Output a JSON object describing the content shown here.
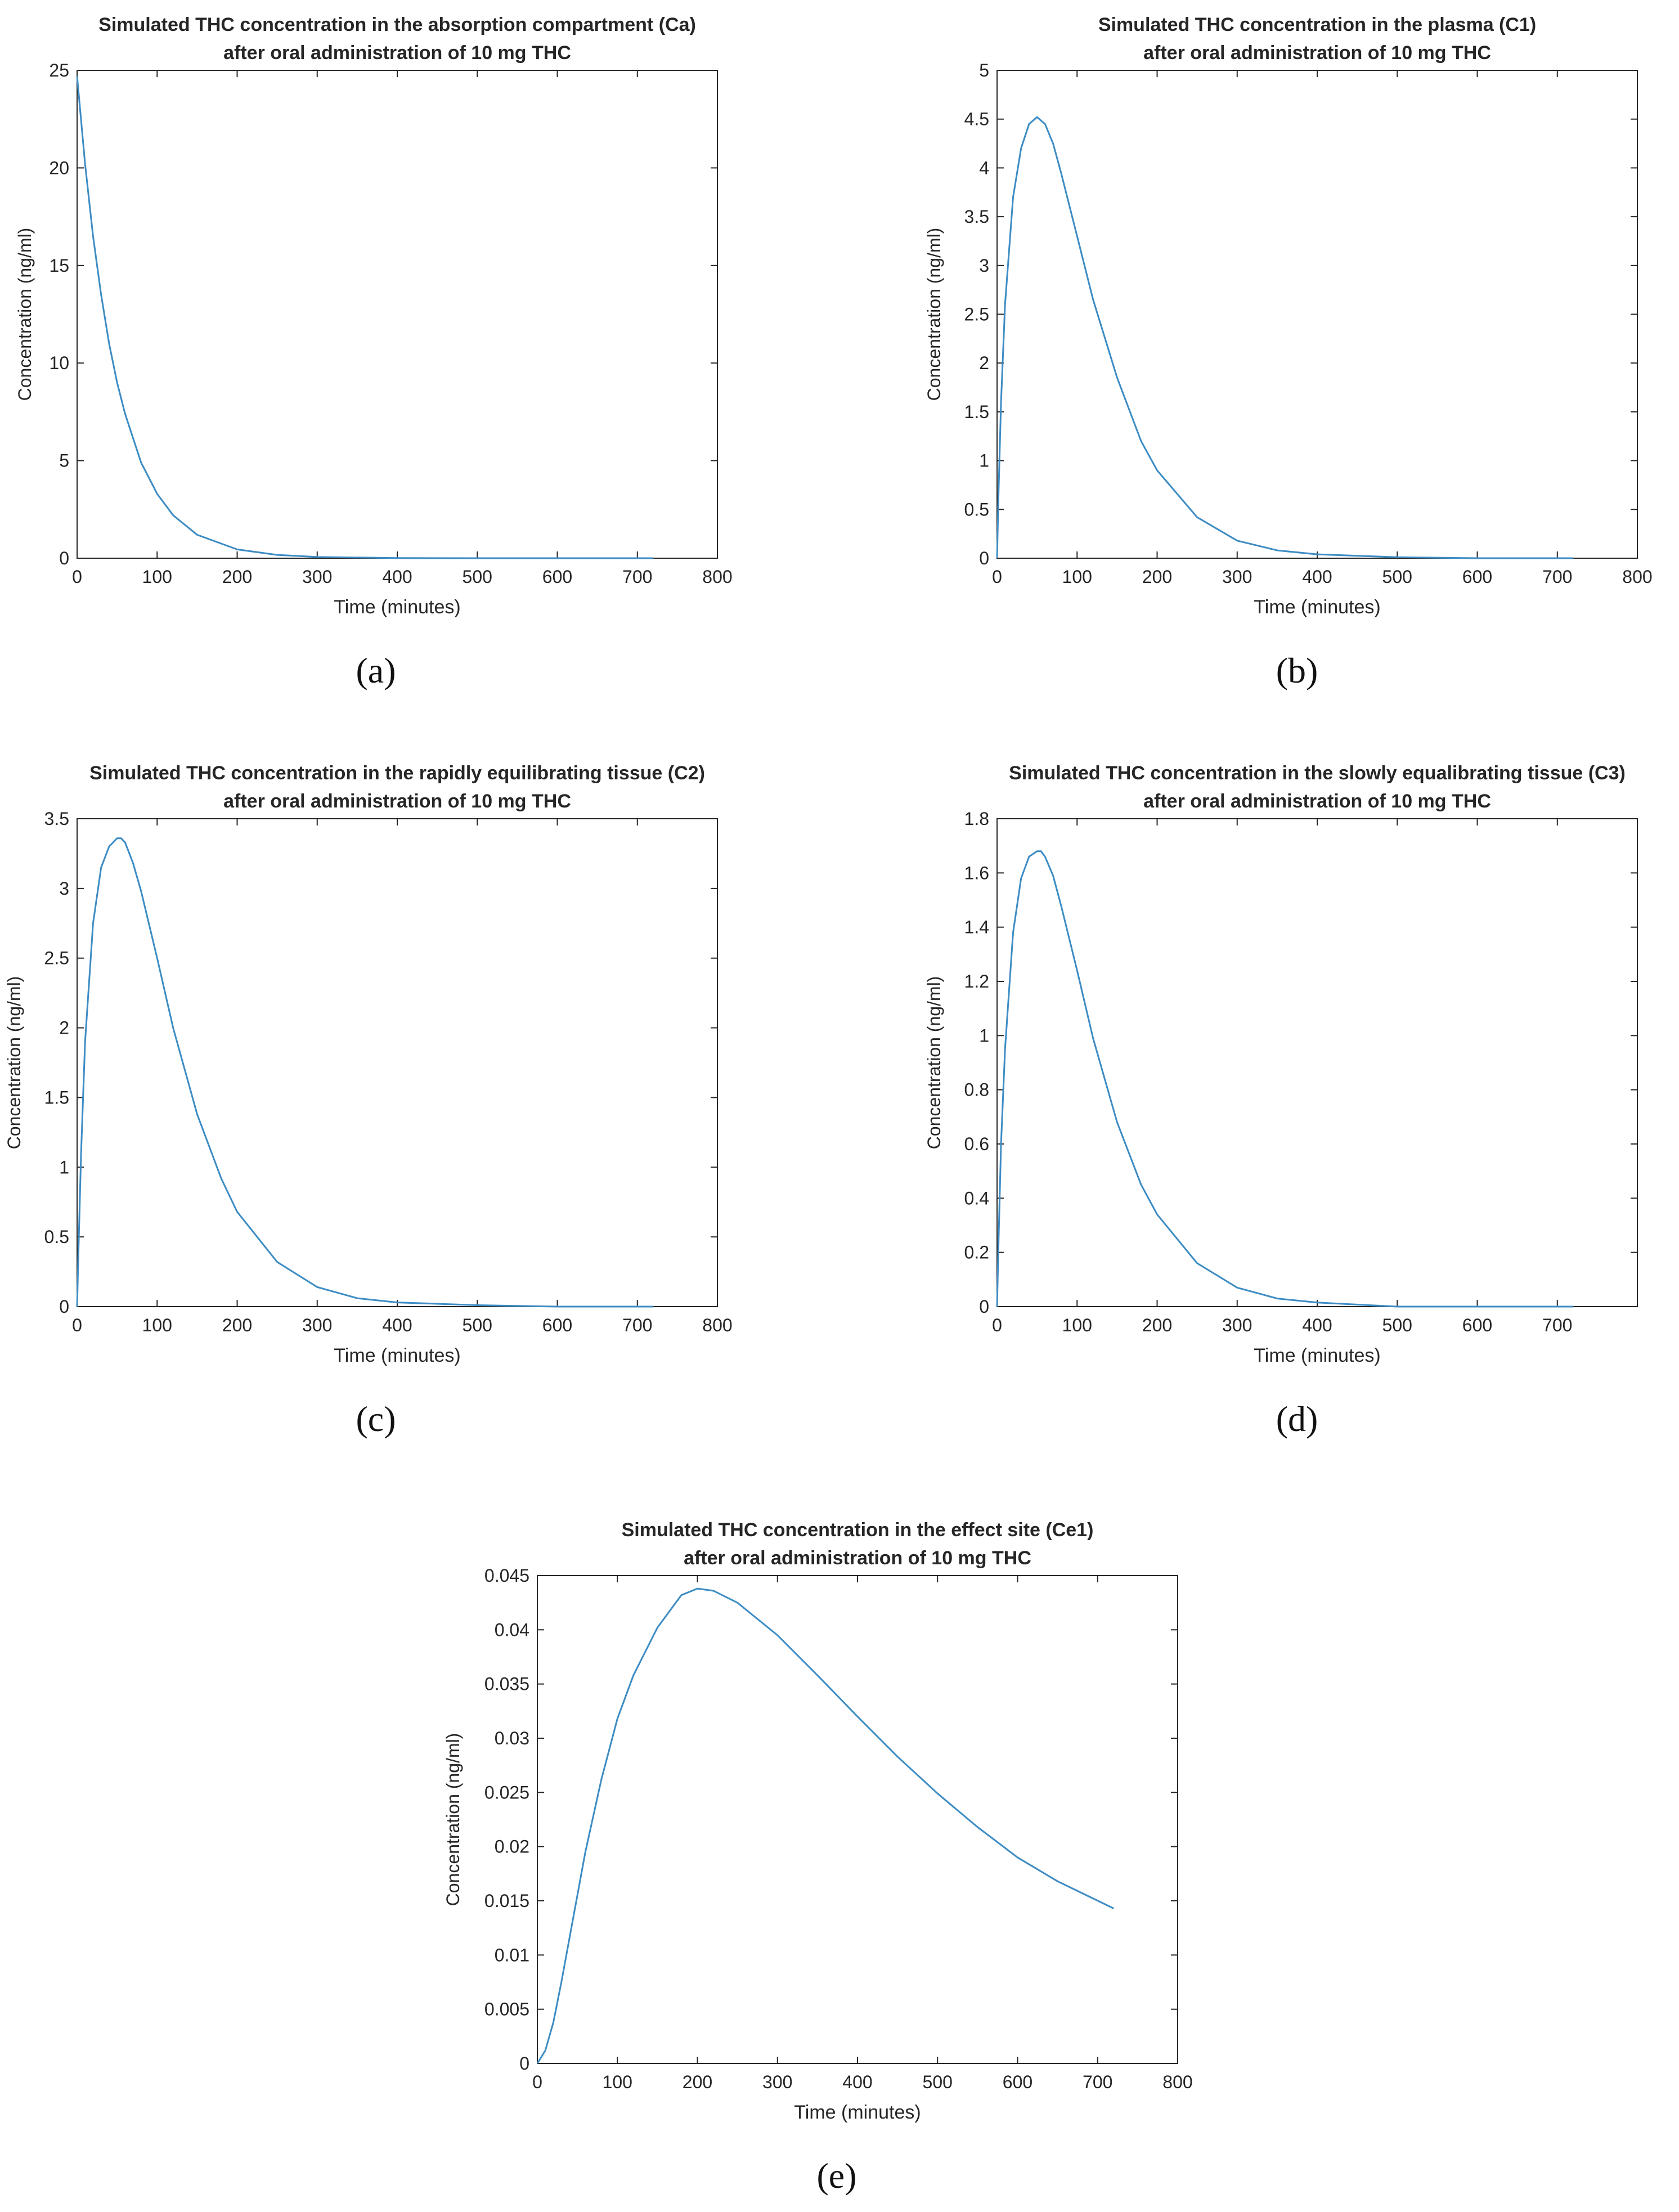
{
  "figure": {
    "colors": {
      "line": "#3d8cc4",
      "axis": "#262626",
      "text": "#262626",
      "background": "#ffffff"
    }
  },
  "chart_data": [
    {
      "id": "a",
      "caption": "(a)",
      "type": "line",
      "title": [
        "Simulated THC concentration in the absorption compartment (Ca)",
        "after oral administration of 10 mg THC"
      ],
      "xlabel": "Time (minutes)",
      "ylabel": "Concentration (ng/ml)",
      "xlim": [
        0,
        800
      ],
      "ylim": [
        0,
        25
      ],
      "xticks": [
        0,
        100,
        200,
        300,
        400,
        500,
        600,
        700,
        800
      ],
      "xtick_labels": [
        "0",
        "100",
        "200",
        "300",
        "400",
        "500",
        "600",
        "700",
        "800"
      ],
      "yticks": [
        0,
        5,
        10,
        15,
        20,
        25
      ],
      "ytick_labels": [
        "0",
        "5",
        "10",
        "15",
        "20",
        "25"
      ],
      "series": [
        {
          "name": "Ca",
          "x": [
            0,
            10,
            20,
            30,
            40,
            50,
            60,
            80,
            100,
            120,
            150,
            200,
            250,
            300,
            400,
            500,
            600,
            720
          ],
          "y": [
            24.7,
            20.2,
            16.5,
            13.5,
            11.0,
            9.0,
            7.4,
            4.9,
            3.3,
            2.2,
            1.2,
            0.45,
            0.17,
            0.06,
            0.01,
            0.0,
            0.0,
            0.0
          ]
        }
      ]
    },
    {
      "id": "b",
      "caption": "(b)",
      "type": "line",
      "title": [
        "Simulated THC concentration in the plasma (C1)",
        "after oral administration of 10 mg THC"
      ],
      "xlabel": "Time (minutes)",
      "ylabel": "Concentration (ng/ml)",
      "xlim": [
        0,
        800
      ],
      "ylim": [
        0,
        5
      ],
      "xticks": [
        0,
        100,
        200,
        300,
        400,
        500,
        600,
        700,
        800
      ],
      "xtick_labels": [
        "0",
        "100",
        "200",
        "300",
        "400",
        "500",
        "600",
        "700",
        "800"
      ],
      "yticks": [
        0,
        0.5,
        1,
        1.5,
        2,
        2.5,
        3,
        3.5,
        4,
        4.5,
        5
      ],
      "ytick_labels": [
        "0",
        "0.5",
        "1",
        "1.5",
        "2",
        "2.5",
        "3",
        "3.5",
        "4",
        "4.5",
        "5"
      ],
      "series": [
        {
          "name": "C1",
          "x": [
            0,
            2,
            5,
            10,
            20,
            30,
            40,
            50,
            60,
            70,
            80,
            100,
            120,
            150,
            180,
            200,
            250,
            300,
            350,
            400,
            500,
            600,
            720
          ],
          "y": [
            0,
            0.7,
            1.6,
            2.6,
            3.7,
            4.2,
            4.45,
            4.52,
            4.45,
            4.25,
            3.95,
            3.3,
            2.65,
            1.85,
            1.2,
            0.9,
            0.42,
            0.18,
            0.08,
            0.04,
            0.01,
            0.0,
            0.0
          ]
        }
      ]
    },
    {
      "id": "c",
      "caption": "(c)",
      "type": "line",
      "title": [
        "Simulated THC concentration in the rapidly equilibrating tissue (C2)",
        "after oral administration of 10 mg THC"
      ],
      "xlabel": "Time (minutes)",
      "ylabel": "Concentration (ng/ml)",
      "xlim": [
        0,
        800
      ],
      "ylim": [
        0,
        3.5
      ],
      "xticks": [
        0,
        100,
        200,
        300,
        400,
        500,
        600,
        700,
        800
      ],
      "xtick_labels": [
        "0",
        "100",
        "200",
        "300",
        "400",
        "500",
        "600",
        "700",
        "800"
      ],
      "yticks": [
        0,
        0.5,
        1,
        1.5,
        2,
        2.5,
        3,
        3.5
      ],
      "ytick_labels": [
        "0",
        "0.5",
        "1",
        "1.5",
        "2",
        "2.5",
        "3",
        "3.5"
      ],
      "series": [
        {
          "name": "C2",
          "x": [
            0,
            2,
            5,
            10,
            20,
            30,
            40,
            50,
            55,
            60,
            70,
            80,
            100,
            120,
            150,
            180,
            200,
            250,
            300,
            350,
            400,
            500,
            600,
            720
          ],
          "y": [
            0,
            0.45,
            1.1,
            1.9,
            2.75,
            3.15,
            3.3,
            3.36,
            3.36,
            3.33,
            3.18,
            2.98,
            2.5,
            2.0,
            1.38,
            0.92,
            0.68,
            0.32,
            0.14,
            0.06,
            0.03,
            0.01,
            0.0,
            0.0
          ]
        }
      ]
    },
    {
      "id": "d",
      "caption": "(d)",
      "type": "line",
      "title": [
        "Simulated THC concentration in the slowly equalibrating tissue (C3)",
        "after oral administration of 10 mg THC"
      ],
      "xlabel": "Time (minutes)",
      "ylabel": "Concentration (ng/ml)",
      "xlim": [
        0,
        800
      ],
      "ylim": [
        0,
        1.8
      ],
      "xticks": [
        0,
        100,
        200,
        300,
        400,
        500,
        600,
        700
      ],
      "xtick_labels": [
        "0",
        "100",
        "200",
        "300",
        "400",
        "500",
        "600",
        "700"
      ],
      "yticks": [
        0,
        0.2,
        0.4,
        0.6,
        0.8,
        1,
        1.2,
        1.4,
        1.6,
        1.8
      ],
      "ytick_labels": [
        "0",
        "0.2",
        "0.4",
        "0.6",
        "0.8",
        "1",
        "1.2",
        "1.4",
        "1.6",
        "1.8"
      ],
      "series": [
        {
          "name": "C3",
          "x": [
            0,
            2,
            5,
            10,
            20,
            30,
            40,
            50,
            55,
            60,
            70,
            80,
            100,
            120,
            150,
            180,
            200,
            250,
            300,
            350,
            400,
            500,
            600,
            720
          ],
          "y": [
            0,
            0.25,
            0.6,
            0.95,
            1.38,
            1.58,
            1.66,
            1.68,
            1.68,
            1.66,
            1.59,
            1.48,
            1.24,
            0.99,
            0.68,
            0.45,
            0.34,
            0.16,
            0.07,
            0.03,
            0.015,
            0.0,
            0.0,
            0.0
          ]
        }
      ]
    },
    {
      "id": "e",
      "caption": "(e)",
      "type": "line",
      "title": [
        "Simulated THC concentration in the effect site (Ce1)",
        "after oral administration of 10 mg THC"
      ],
      "xlabel": "Time (minutes)",
      "ylabel": "Concentration (ng/ml)",
      "xlim": [
        0,
        800
      ],
      "ylim": [
        0,
        0.045
      ],
      "xticks": [
        0,
        100,
        200,
        300,
        400,
        500,
        600,
        700,
        800
      ],
      "xtick_labels": [
        "0",
        "100",
        "200",
        "300",
        "400",
        "500",
        "600",
        "700",
        "800"
      ],
      "yticks": [
        0,
        0.005,
        0.01,
        0.015,
        0.02,
        0.025,
        0.03,
        0.035,
        0.04,
        0.045
      ],
      "ytick_labels": [
        "0",
        "0.005",
        "0.01",
        "0.015",
        "0.02",
        "0.025",
        "0.03",
        "0.035",
        "0.04",
        "0.045"
      ],
      "series": [
        {
          "name": "Ce1",
          "x": [
            0,
            10,
            20,
            30,
            40,
            50,
            60,
            80,
            100,
            120,
            150,
            180,
            200,
            220,
            250,
            300,
            350,
            400,
            450,
            500,
            550,
            600,
            650,
            720
          ],
          "y": [
            0,
            0.0012,
            0.0038,
            0.0075,
            0.0115,
            0.0155,
            0.0195,
            0.0262,
            0.0318,
            0.0358,
            0.0402,
            0.0432,
            0.0438,
            0.0436,
            0.0425,
            0.0395,
            0.0358,
            0.032,
            0.0283,
            0.0249,
            0.0218,
            0.019,
            0.0168,
            0.0143
          ]
        }
      ]
    }
  ]
}
